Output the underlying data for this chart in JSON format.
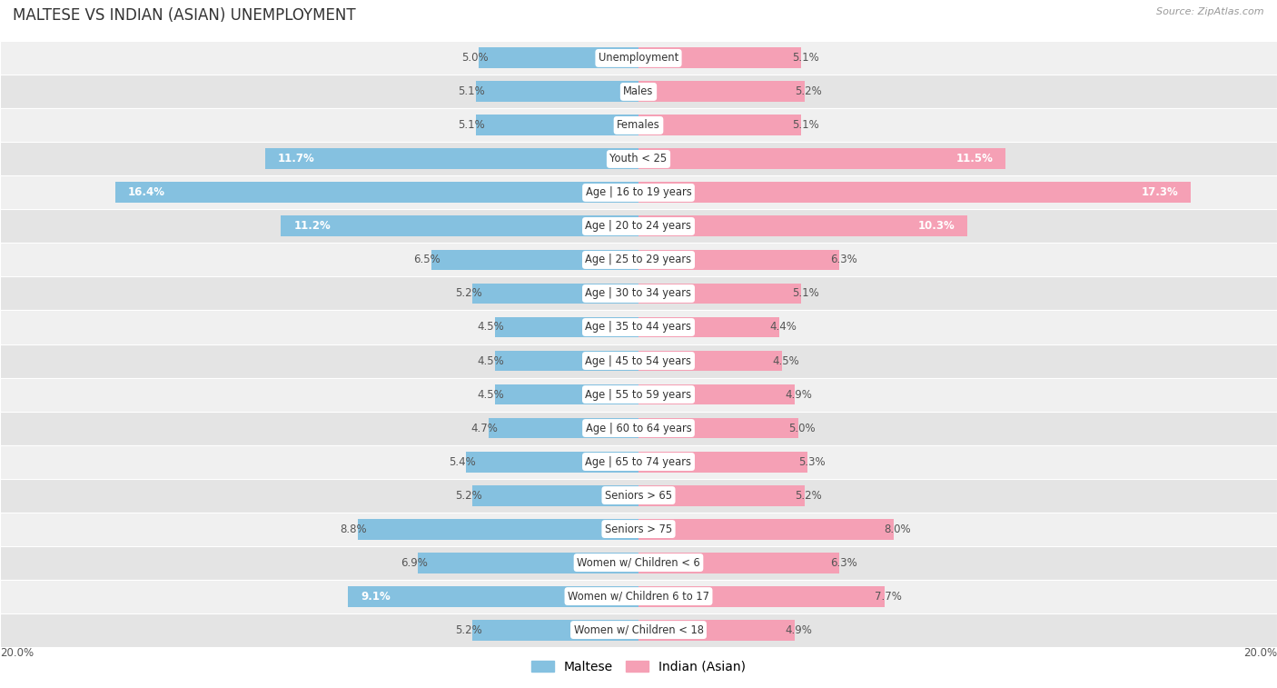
{
  "title": "MALTESE VS INDIAN (ASIAN) UNEMPLOYMENT",
  "source": "Source: ZipAtlas.com",
  "categories": [
    "Unemployment",
    "Males",
    "Females",
    "Youth < 25",
    "Age | 16 to 19 years",
    "Age | 20 to 24 years",
    "Age | 25 to 29 years",
    "Age | 30 to 34 years",
    "Age | 35 to 44 years",
    "Age | 45 to 54 years",
    "Age | 55 to 59 years",
    "Age | 60 to 64 years",
    "Age | 65 to 74 years",
    "Seniors > 65",
    "Seniors > 75",
    "Women w/ Children < 6",
    "Women w/ Children 6 to 17",
    "Women w/ Children < 18"
  ],
  "maltese_values": [
    5.0,
    5.1,
    5.1,
    11.7,
    16.4,
    11.2,
    6.5,
    5.2,
    4.5,
    4.5,
    4.5,
    4.7,
    5.4,
    5.2,
    8.8,
    6.9,
    9.1,
    5.2
  ],
  "indian_values": [
    5.1,
    5.2,
    5.1,
    11.5,
    17.3,
    10.3,
    6.3,
    5.1,
    4.4,
    4.5,
    4.9,
    5.0,
    5.3,
    5.2,
    8.0,
    6.3,
    7.7,
    4.9
  ],
  "maltese_color": "#85c1e0",
  "indian_color": "#f5a0b5",
  "row_bg_colors": [
    "#f0f0f0",
    "#e4e4e4"
  ],
  "max_value": 20.0,
  "label_fontsize": 8.5,
  "title_fontsize": 12,
  "legend_labels": [
    "Maltese",
    "Indian (Asian)"
  ],
  "inside_label_threshold": 9.0
}
